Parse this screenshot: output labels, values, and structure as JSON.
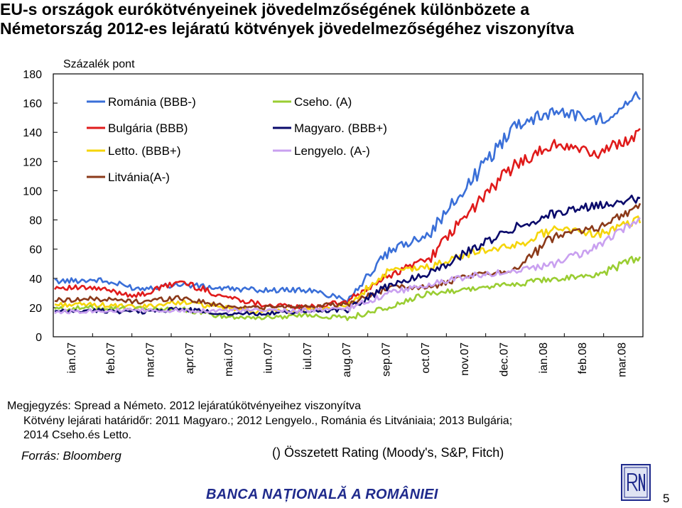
{
  "title_line1": "EU-s országok eurókötvényeinek jövedelmzőségének különbözete a",
  "title_line2": "Németország 2012-es lejáratú kötvények  jövedelmezőségéhez viszonyítva",
  "notes": {
    "line1": "Megjegyzés: Spread  a Németo. 2012 lejáratúkötvényeihez viszonyítva",
    "line2": "Kötvény lejárati határidőr: 2011 Magyaro.; 2012 Lengyelo., Románia és  Litvániaia; 2013 Bulgária;",
    "line3": "2014 Cseho.és Letto.",
    "source": "Forrás: Bloomberg",
    "rating": "() Összetett Rating  (Moody's, S&P, Fitch)"
  },
  "footer": {
    "bank": "BANCA NAȚIONALĂ A ROMÂNIEI",
    "page": "5"
  },
  "logo_icon": "bnr-crest-logo",
  "chart_data": {
    "type": "line",
    "ylabel": "Százalék pont",
    "ylim": [
      0,
      180
    ],
    "yticks": [
      0,
      20,
      40,
      60,
      80,
      100,
      120,
      140,
      160,
      180
    ],
    "categories": [
      "ian.07",
      "feb.07",
      "mar.07",
      "apr.07",
      "mai.07",
      "iun.07",
      "iul.07",
      "aug.07",
      "sep.07",
      "oct.07",
      "nov.07",
      "dec.07",
      "ian.08",
      "feb.08",
      "mar.08"
    ],
    "grid": false,
    "legend_position": "top-left",
    "series": [
      {
        "name": "Románia (BBB-)",
        "color": "#3a6fd8",
        "values": [
          38,
          39,
          33,
          36,
          33,
          32,
          32,
          26,
          58,
          72,
          108,
          145,
          155,
          148,
          165
        ]
      },
      {
        "name": "Bulgária (BBB)",
        "color": "#e01b1b",
        "values": [
          34,
          33,
          28,
          38,
          28,
          22,
          20,
          24,
          42,
          55,
          88,
          118,
          132,
          125,
          140
        ]
      },
      {
        "name": "Letto. (BBB+)",
        "color": "#f5d50a",
        "values": [
          22,
          22,
          20,
          24,
          20,
          17,
          18,
          21,
          45,
          48,
          58,
          62,
          75,
          70,
          80
        ]
      },
      {
        "name": "Litvánia(A-)",
        "color": "#8b3a1a",
        "values": [
          25,
          26,
          24,
          27,
          21,
          20,
          21,
          22,
          34,
          34,
          42,
          46,
          70,
          75,
          90
        ]
      },
      {
        "name": "Cseho. (A)",
        "color": "#9acd32",
        "values": [
          19,
          20,
          19,
          19,
          14,
          13,
          15,
          13,
          20,
          30,
          33,
          36,
          40,
          42,
          55
        ]
      },
      {
        "name": "Magyaro. (BBB+)",
        "color": "#0a0a6b",
        "values": [
          17,
          18,
          17,
          19,
          16,
          16,
          17,
          19,
          35,
          44,
          60,
          75,
          85,
          90,
          95
        ]
      },
      {
        "name": "Lengyelo. (A-)",
        "color": "#c9a0f0",
        "values": [
          17,
          18,
          18,
          18,
          18,
          18,
          18,
          19,
          30,
          36,
          42,
          45,
          50,
          62,
          80
        ]
      }
    ]
  }
}
